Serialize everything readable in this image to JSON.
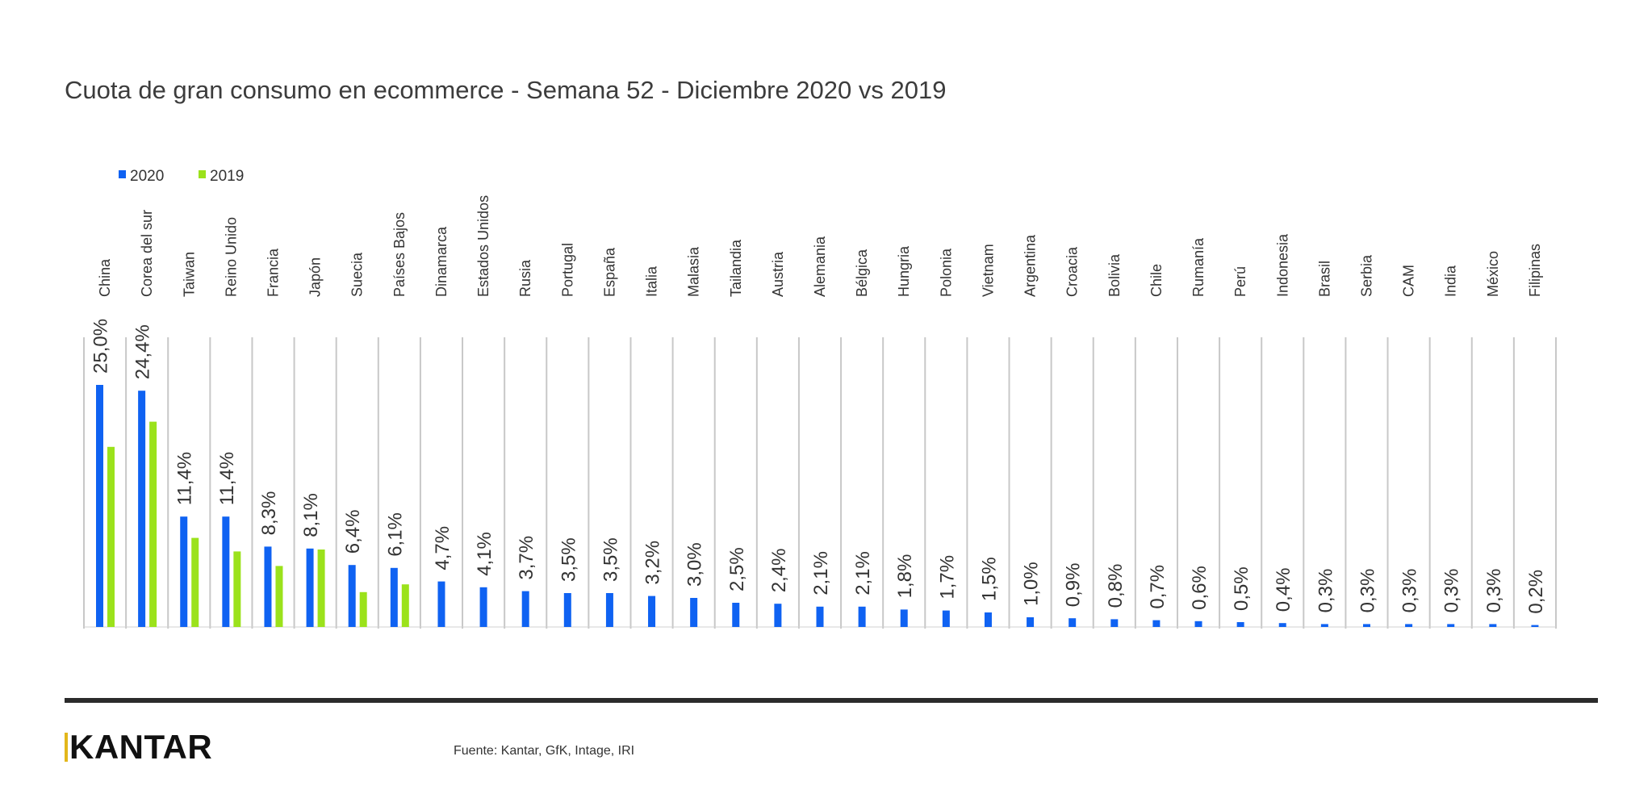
{
  "chart_data": {
    "type": "bar",
    "title": "Cuota de gran consumo en ecommerce  - Semana 52 - Diciembre 2020 vs 2019",
    "xlabel": "",
    "ylabel": "",
    "ylim": [
      0,
      30
    ],
    "grid": false,
    "legend_position": "top-left",
    "categories": [
      "China",
      "Corea del sur",
      "Taiwan",
      "Reino Unido",
      "Francia",
      "Japón",
      "Suecia",
      "Países Bajos",
      "Dinamarca",
      "Estados Unidos",
      "Rusia",
      "Portugal",
      "España",
      "Italia",
      "Malasia",
      "Tailandia",
      "Austria",
      "Alemania",
      "Bélgica",
      "Hungria",
      "Polonia",
      "Vietnam",
      "Argentina",
      "Croacia",
      "Bolivia",
      "Chile",
      "Rumanía",
      "Perú",
      "Indonesia",
      "Brasil",
      "Serbia",
      "CAM",
      "India",
      "México",
      "Filipinas"
    ],
    "series": [
      {
        "name": "2020",
        "color": "#0f62f2",
        "values": [
          25.0,
          24.4,
          11.4,
          11.4,
          8.3,
          8.1,
          6.4,
          6.1,
          4.7,
          4.1,
          3.7,
          3.5,
          3.5,
          3.2,
          3.0,
          2.5,
          2.4,
          2.1,
          2.1,
          1.8,
          1.7,
          1.5,
          1.0,
          0.9,
          0.8,
          0.7,
          0.6,
          0.5,
          0.4,
          0.3,
          0.3,
          0.3,
          0.3,
          0.3,
          0.2
        ],
        "data_labels": [
          "25,0%",
          "24,4%",
          "11,4%",
          "11,4%",
          "8,3%",
          "8,1%",
          "6,4%",
          "6,1%",
          "4,7%",
          "4,1%",
          "3,7%",
          "3,5%",
          "3,5%",
          "3,2%",
          "3,0%",
          "2,5%",
          "2,4%",
          "2,1%",
          "2,1%",
          "1,8%",
          "1,7%",
          "1,5%",
          "1,0%",
          "0,9%",
          "0,8%",
          "0,7%",
          "0,6%",
          "0,5%",
          "0,4%",
          "0,3%",
          "0,3%",
          "0,3%",
          "0,3%",
          "0,3%",
          "0,2%"
        ]
      },
      {
        "name": "2019",
        "color": "#9be21b",
        "values": [
          18.6,
          21.2,
          9.2,
          7.8,
          6.3,
          8.0,
          3.6,
          4.4,
          null,
          null,
          null,
          null,
          null,
          null,
          null,
          null,
          null,
          null,
          null,
          null,
          null,
          null,
          null,
          null,
          null,
          null,
          null,
          null,
          null,
          null,
          null,
          null,
          null,
          null,
          null
        ]
      }
    ]
  },
  "footer": {
    "logo_text": "KANTAR",
    "source": "Fuente: Kantar, GfK, Intage, IRI"
  }
}
